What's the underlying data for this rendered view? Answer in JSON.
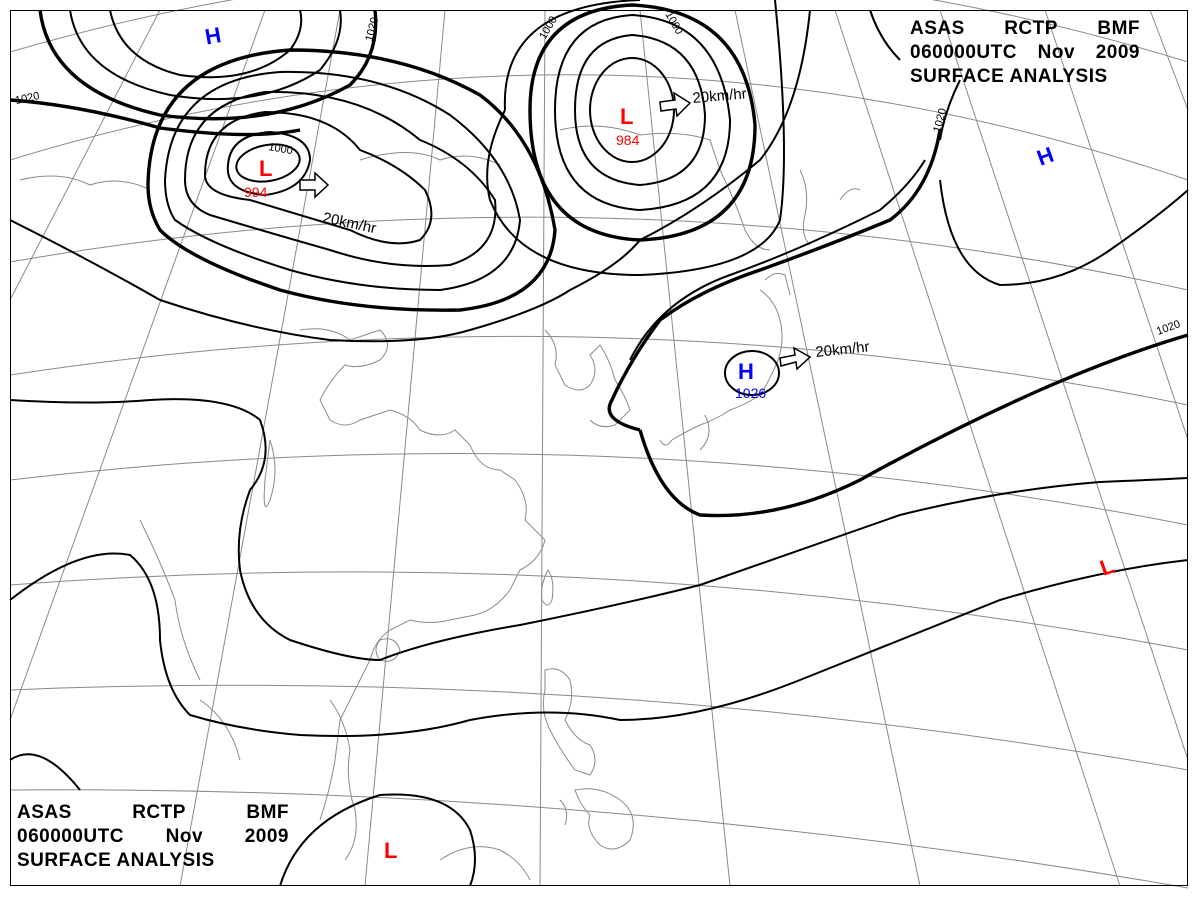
{
  "header": {
    "line1": [
      "ASAS",
      "RCTP",
      "BMF"
    ],
    "line2": [
      "060000UTC",
      "Nov",
      "2009"
    ],
    "line3": "SURFACE ANALYSIS"
  },
  "colors": {
    "low": "#ff0000",
    "high": "#0000ff",
    "isobar": "#000000",
    "grid": "#8a8a8a"
  },
  "pressure_systems": [
    {
      "id": "low-nw",
      "type": "L",
      "value": "994",
      "motion": "20km/hr"
    },
    {
      "id": "low-north",
      "type": "L",
      "value": "984",
      "motion": "20km/hr"
    },
    {
      "id": "high-japan",
      "type": "H",
      "value": "1026",
      "motion": "20km/hr"
    },
    {
      "id": "high-nw-corner",
      "type": "H",
      "value": ""
    },
    {
      "id": "high-ne",
      "type": "H",
      "value": ""
    },
    {
      "id": "low-se",
      "type": "L",
      "value": ""
    },
    {
      "id": "low-south",
      "type": "L",
      "value": ""
    }
  ],
  "isobar_labels": [
    "1020",
    "1020",
    "1000",
    "1000",
    "1000",
    "1020",
    "1020"
  ]
}
